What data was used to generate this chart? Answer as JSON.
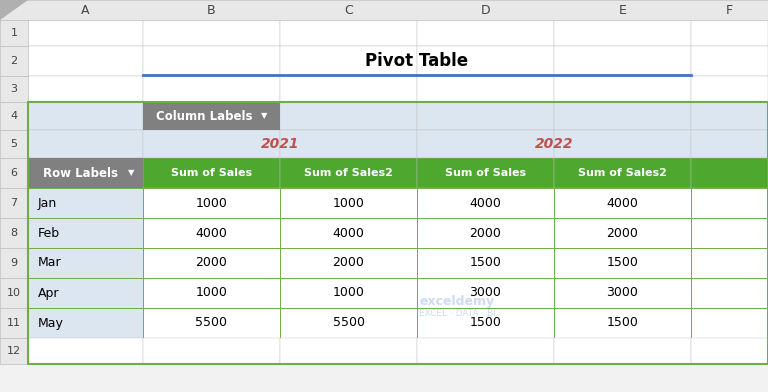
{
  "title": "Pivot Table",
  "col_labels_text": "Column Labels",
  "year_2021": "2021",
  "year_2022": "2022",
  "row_labels_text": "Row Labels",
  "col_headers": [
    "Sum of Sales",
    "Sum of Sales2",
    "Sum of Sales",
    "Sum of Sales2"
  ],
  "months": [
    "Jan",
    "Feb",
    "Mar",
    "Apr",
    "May"
  ],
  "data": [
    [
      1000,
      1000,
      4000,
      4000
    ],
    [
      4000,
      4000,
      2000,
      2000
    ],
    [
      2000,
      2000,
      1500,
      1500
    ],
    [
      1000,
      1000,
      3000,
      3000
    ],
    [
      5500,
      5500,
      1500,
      1500
    ]
  ],
  "col_letters": [
    "A",
    "B",
    "C",
    "D",
    "E",
    "F"
  ],
  "bg_color": "#f2f2f2",
  "header_bg": "#e8edf3",
  "col_labels_bg": "#808080",
  "year_text_color": "#c0504d",
  "data_header_bg": "#4ea72e",
  "data_header_text_color": "#ffffff",
  "row_labels_bg": "#808080",
  "grid_color": "#70ad47",
  "border_color": "#c0c0c0",
  "cell_bg_header_rows": "#dce6f1",
  "title_color": "#000000",
  "separator_color": "#4472c4",
  "watermark_color": "#4472c4",
  "watermark_alpha": 0.25,
  "row_num_bg": "#e8e8e8",
  "col_header_bg": "#e8e8e8",
  "triangle_color": "#b0b0b0"
}
